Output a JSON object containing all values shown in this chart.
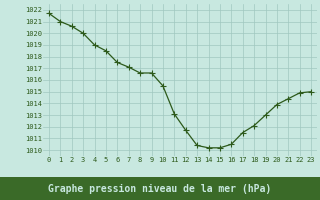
{
  "x": [
    0,
    1,
    2,
    3,
    4,
    5,
    6,
    7,
    8,
    9,
    10,
    11,
    12,
    13,
    14,
    15,
    16,
    17,
    18,
    19,
    20,
    21,
    22,
    23
  ],
  "y": [
    1021.7,
    1021.0,
    1020.6,
    1020.0,
    1019.0,
    1018.5,
    1017.5,
    1017.1,
    1016.6,
    1016.6,
    1015.5,
    1013.1,
    1011.7,
    1010.4,
    1010.2,
    1010.2,
    1010.5,
    1011.5,
    1012.1,
    1013.0,
    1013.9,
    1014.4,
    1014.9,
    1015.0
  ],
  "ylim": [
    1009.5,
    1022.5
  ],
  "xlim": [
    -0.5,
    23.5
  ],
  "yticks": [
    1010,
    1011,
    1012,
    1013,
    1014,
    1015,
    1016,
    1017,
    1018,
    1019,
    1020,
    1021,
    1022
  ],
  "xticks": [
    0,
    1,
    2,
    3,
    4,
    5,
    6,
    7,
    8,
    9,
    10,
    11,
    12,
    13,
    14,
    15,
    16,
    17,
    18,
    19,
    20,
    21,
    22,
    23
  ],
  "line_color": "#2d5a1b",
  "marker": "+",
  "marker_size": 4,
  "bg_color": "#c8e8e0",
  "grid_color": "#a0c8c0",
  "xlabel": "Graphe pression niveau de la mer (hPa)",
  "xlabel_color": "#2d5a1b",
  "tick_color": "#2d5a1b",
  "tick_fontsize": 5.0,
  "xlabel_fontsize": 7.0,
  "linewidth": 0.9,
  "bottom_bg": "#3a6a28"
}
